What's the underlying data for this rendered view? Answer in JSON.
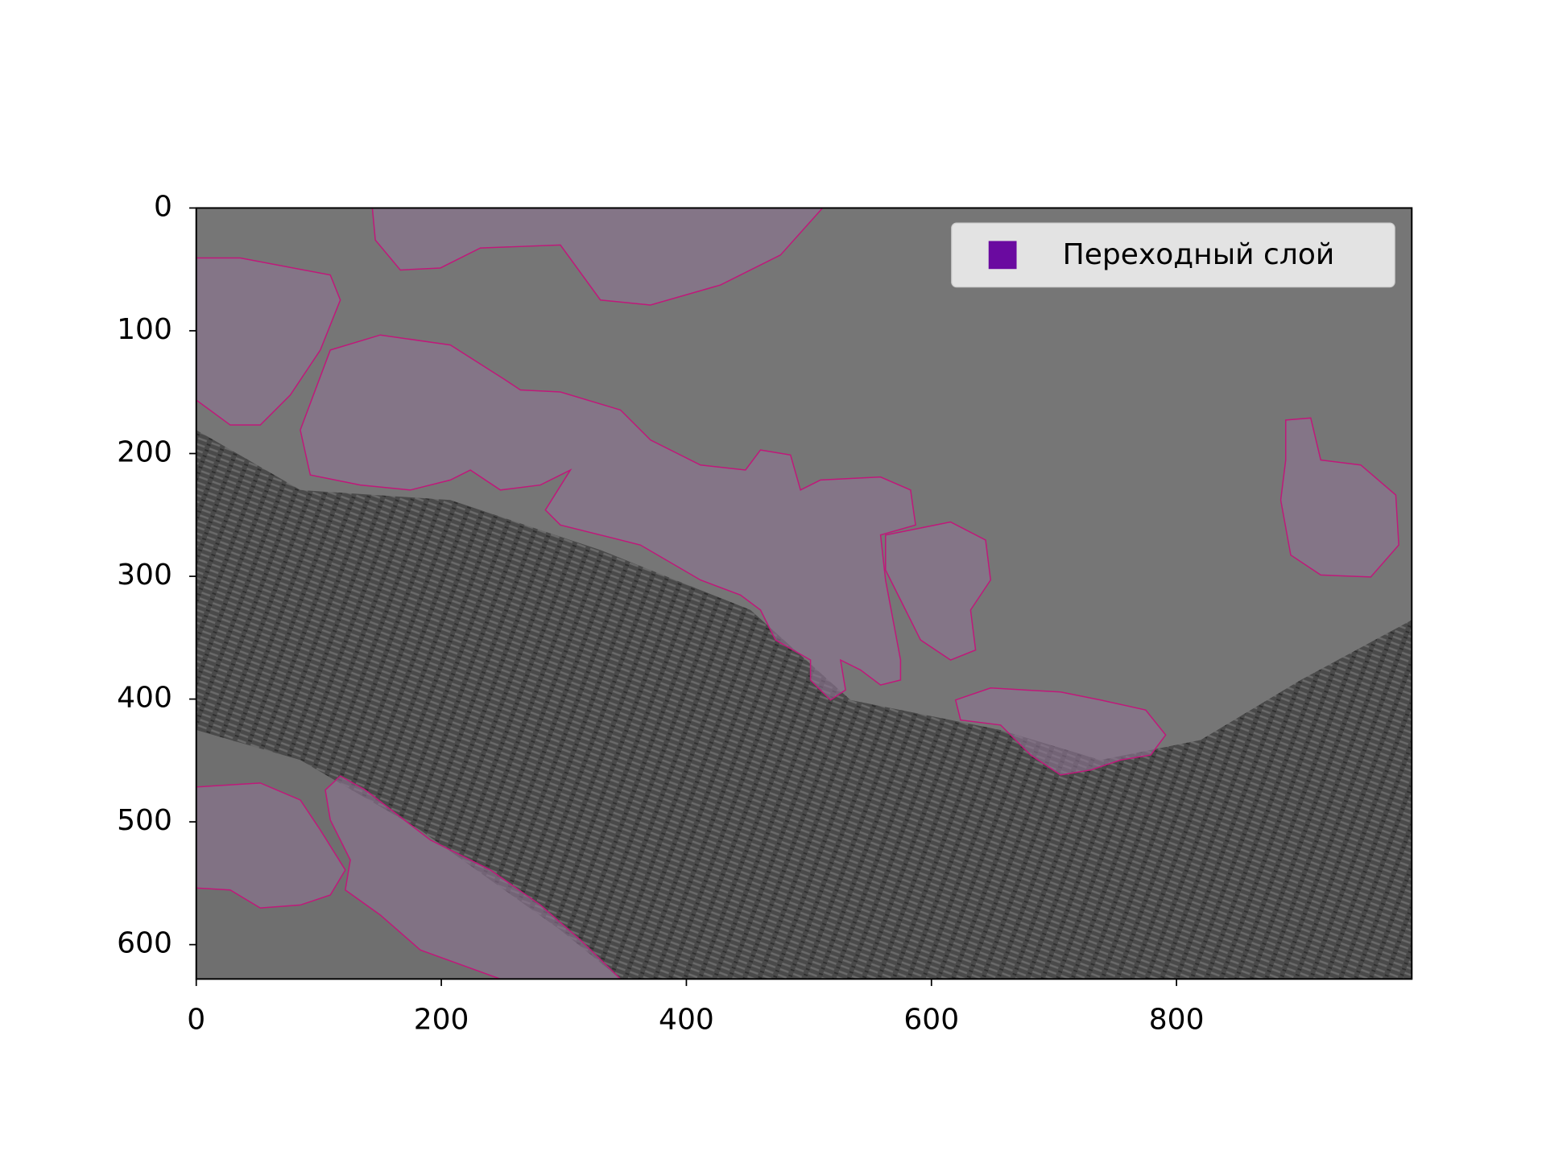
{
  "chart_data": {
    "type": "image",
    "xlim": [
      0,
      992
    ],
    "ylim": [
      628,
      0
    ],
    "xticks": [
      0,
      200,
      400,
      600,
      800
    ],
    "yticks": [
      0,
      100,
      200,
      300,
      400,
      500,
      600
    ],
    "legend": "upper right",
    "series": [
      {
        "name": "Переходный слой",
        "color": "#6a0aa0"
      }
    ]
  }
}
